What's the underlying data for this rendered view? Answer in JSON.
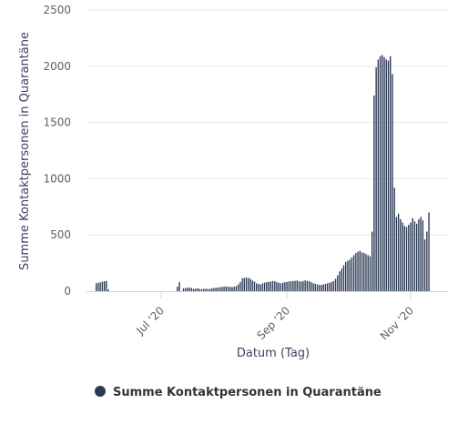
{
  "chart_data": {
    "type": "bar",
    "xlabel": "Datum (Tag)",
    "ylabel": "Summe Kontaktpersonen in Quarantäne",
    "ylim": [
      0,
      2500
    ],
    "y_ticks": [
      "0",
      "500",
      "1000",
      "1500",
      "2000",
      "2500"
    ],
    "x_start": "2020-05-30",
    "x_ticks": [
      {
        "label": "Jul '20",
        "date": "2020-07-01"
      },
      {
        "label": "Sep '20",
        "date": "2020-09-01"
      },
      {
        "label": "Nov '20",
        "date": "2020-11-01"
      }
    ],
    "grid": true,
    "legend_position": "bottom",
    "series": [
      {
        "name": "Summe Kontaktpersonen in Quarantäne",
        "color": "#2b3a55",
        "values": [
          70,
          75,
          78,
          85,
          88,
          90,
          15,
          0,
          0,
          0,
          0,
          0,
          0,
          0,
          0,
          0,
          0,
          0,
          0,
          0,
          0,
          0,
          0,
          0,
          0,
          0,
          0,
          0,
          0,
          0,
          0,
          0,
          0,
          0,
          0,
          0,
          0,
          0,
          0,
          0,
          40,
          80,
          0,
          25,
          28,
          30,
          32,
          28,
          20,
          22,
          25,
          20,
          18,
          20,
          22,
          18,
          20,
          25,
          28,
          30,
          32,
          35,
          38,
          40,
          42,
          40,
          38,
          36,
          40,
          45,
          60,
          80,
          115,
          118,
          120,
          118,
          110,
          95,
          85,
          70,
          65,
          60,
          70,
          75,
          80,
          82,
          85,
          90,
          88,
          80,
          75,
          70,
          75,
          80,
          82,
          85,
          88,
          90,
          92,
          95,
          88,
          85,
          90,
          95,
          92,
          88,
          80,
          70,
          65,
          60,
          55,
          55,
          60,
          65,
          70,
          75,
          80,
          90,
          110,
          140,
          175,
          200,
          230,
          260,
          270,
          280,
          300,
          320,
          340,
          350,
          360,
          345,
          340,
          330,
          320,
          310,
          530,
          1740,
          1990,
          2060,
          2090,
          2100,
          2080,
          2060,
          2050,
          2090,
          1930,
          920,
          660,
          690,
          640,
          610,
          580,
          570,
          590,
          610,
          650,
          620,
          600,
          640,
          660,
          630,
          460,
          530,
          700
        ]
      }
    ]
  }
}
